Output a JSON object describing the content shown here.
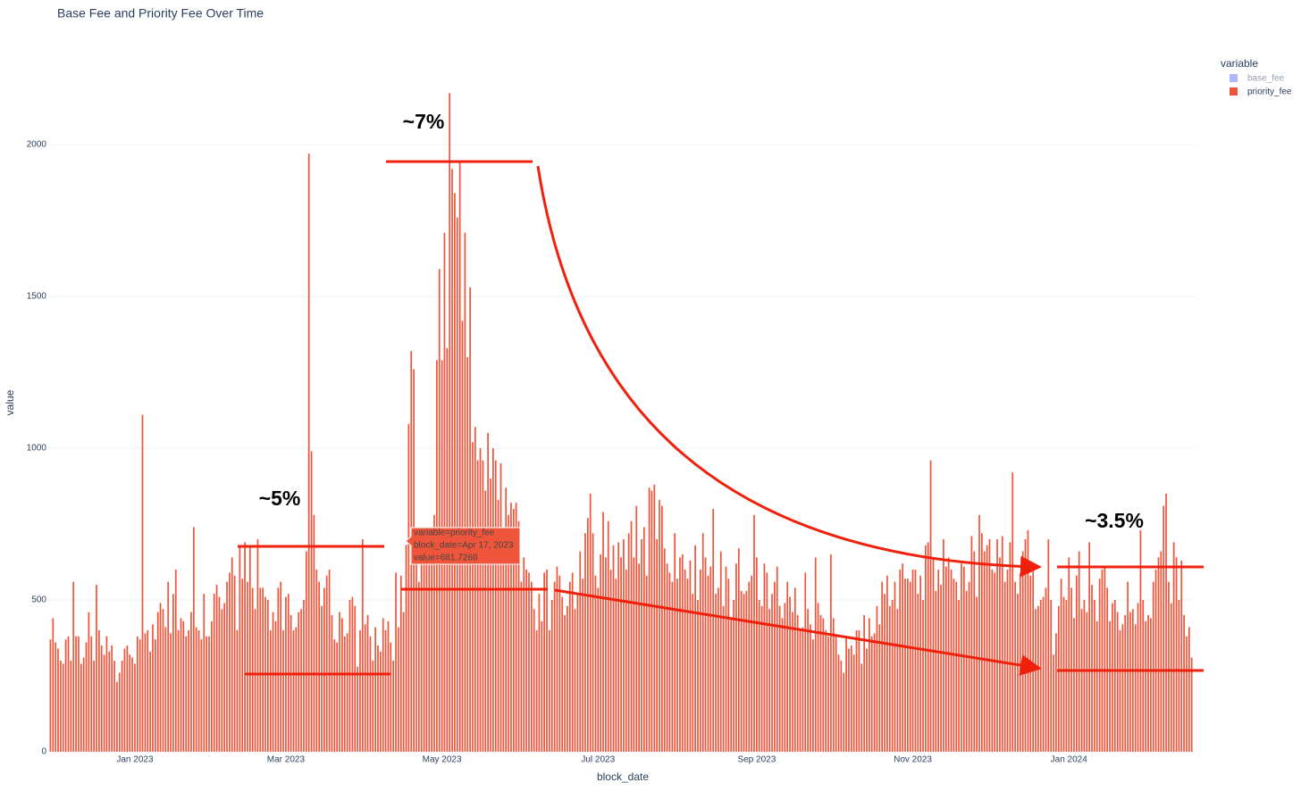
{
  "chart_data": {
    "type": "bar",
    "title": "Base Fee and Priority Fee Over Time",
    "x_label": "block_date",
    "y_label": "value",
    "legend_title": "variable",
    "legend_position": "top-right",
    "grid": true,
    "xlim": [
      "2022-11-28T12:00:00Z",
      "2024-02-19T12:00:00Z"
    ],
    "xticks": [
      {
        "value": "2023-01-01",
        "label": "Jan 2023"
      },
      {
        "value": "2023-03-01",
        "label": "Mar 2023"
      },
      {
        "value": "2023-05-01",
        "label": "May 2023"
      },
      {
        "value": "2023-07-01",
        "label": "Jul 2023"
      },
      {
        "value": "2023-09-01",
        "label": "Sep 2023"
      },
      {
        "value": "2023-11-01",
        "label": "Nov 2023"
      },
      {
        "value": "2024-01-01",
        "label": "Jan 2024"
      }
    ],
    "ylim": [
      0,
      2300
    ],
    "yticks": [
      0,
      500,
      1000,
      1500,
      2000
    ],
    "x": [
      "2022-11-29",
      "2022-11-30",
      "2022-12-01",
      "2022-12-02",
      "2022-12-03",
      "2022-12-04",
      "2022-12-05",
      "2022-12-06",
      "2022-12-07",
      "2022-12-08",
      "2022-12-09",
      "2022-12-10",
      "2022-12-11",
      "2022-12-12",
      "2022-12-13",
      "2022-12-14",
      "2022-12-15",
      "2022-12-16",
      "2022-12-17",
      "2022-12-18",
      "2022-12-19",
      "2022-12-20",
      "2022-12-21",
      "2022-12-22",
      "2022-12-23",
      "2022-12-24",
      "2022-12-25",
      "2022-12-26",
      "2022-12-27",
      "2022-12-28",
      "2022-12-29",
      "2022-12-30",
      "2022-12-31",
      "2023-01-01",
      "2023-01-02",
      "2023-01-03",
      "2023-01-04",
      "2023-01-05",
      "2023-01-06",
      "2023-01-07",
      "2023-01-08",
      "2023-01-09",
      "2023-01-10",
      "2023-01-11",
      "2023-01-12",
      "2023-01-13",
      "2023-01-14",
      "2023-01-15",
      "2023-01-16",
      "2023-01-17",
      "2023-01-18",
      "2023-01-19",
      "2023-01-20",
      "2023-01-21",
      "2023-01-22",
      "2023-01-23",
      "2023-01-24",
      "2023-01-25",
      "2023-01-26",
      "2023-01-27",
      "2023-01-28",
      "2023-01-29",
      "2023-01-30",
      "2023-01-31",
      "2023-02-01",
      "2023-02-02",
      "2023-02-03",
      "2023-02-04",
      "2023-02-05",
      "2023-02-06",
      "2023-02-07",
      "2023-02-08",
      "2023-02-09",
      "2023-02-10",
      "2023-02-11",
      "2023-02-12",
      "2023-02-13",
      "2023-02-14",
      "2023-02-15",
      "2023-02-16",
      "2023-02-17",
      "2023-02-18",
      "2023-02-19",
      "2023-02-20",
      "2023-02-21",
      "2023-02-22",
      "2023-02-23",
      "2023-02-24",
      "2023-02-25",
      "2023-02-26",
      "2023-02-27",
      "2023-02-28",
      "2023-03-01",
      "2023-03-02",
      "2023-03-03",
      "2023-03-04",
      "2023-03-05",
      "2023-03-06",
      "2023-03-07",
      "2023-03-08",
      "2023-03-09",
      "2023-03-10",
      "2023-03-11",
      "2023-03-12",
      "2023-03-13",
      "2023-03-14",
      "2023-03-15",
      "2023-03-16",
      "2023-03-17",
      "2023-03-18",
      "2023-03-19",
      "2023-03-20",
      "2023-03-21",
      "2023-03-22",
      "2023-03-23",
      "2023-03-24",
      "2023-03-25",
      "2023-03-26",
      "2023-03-27",
      "2023-03-28",
      "2023-03-29",
      "2023-03-30",
      "2023-03-31",
      "2023-04-01",
      "2023-04-02",
      "2023-04-03",
      "2023-04-04",
      "2023-04-05",
      "2023-04-06",
      "2023-04-07",
      "2023-04-08",
      "2023-04-09",
      "2023-04-10",
      "2023-04-11",
      "2023-04-12",
      "2023-04-13",
      "2023-04-14",
      "2023-04-15",
      "2023-04-16",
      "2023-04-17",
      "2023-04-18",
      "2023-04-19",
      "2023-04-20",
      "2023-04-21",
      "2023-04-22",
      "2023-04-23",
      "2023-04-24",
      "2023-04-25",
      "2023-04-26",
      "2023-04-27",
      "2023-04-28",
      "2023-04-29",
      "2023-04-30",
      "2023-05-01",
      "2023-05-02",
      "2023-05-03",
      "2023-05-04",
      "2023-05-05",
      "2023-05-06",
      "2023-05-07",
      "2023-05-08",
      "2023-05-09",
      "2023-05-10",
      "2023-05-11",
      "2023-05-12",
      "2023-05-13",
      "2023-05-14",
      "2023-05-15",
      "2023-05-16",
      "2023-05-17",
      "2023-05-18",
      "2023-05-19",
      "2023-05-20",
      "2023-05-21",
      "2023-05-22",
      "2023-05-23",
      "2023-05-24",
      "2023-05-25",
      "2023-05-26",
      "2023-05-27",
      "2023-05-28",
      "2023-05-29",
      "2023-05-30",
      "2023-05-31",
      "2023-06-01",
      "2023-06-02",
      "2023-06-03",
      "2023-06-04",
      "2023-06-05",
      "2023-06-06",
      "2023-06-07",
      "2023-06-08",
      "2023-06-09",
      "2023-06-10",
      "2023-06-11",
      "2023-06-12",
      "2023-06-13",
      "2023-06-14",
      "2023-06-15",
      "2023-06-16",
      "2023-06-17",
      "2023-06-18",
      "2023-06-19",
      "2023-06-20",
      "2023-06-21",
      "2023-06-22",
      "2023-06-23",
      "2023-06-24",
      "2023-06-25",
      "2023-06-26",
      "2023-06-27",
      "2023-06-28",
      "2023-06-29",
      "2023-06-30",
      "2023-07-01",
      "2023-07-02",
      "2023-07-03",
      "2023-07-04",
      "2023-07-05",
      "2023-07-06",
      "2023-07-07",
      "2023-07-08",
      "2023-07-09",
      "2023-07-10",
      "2023-07-11",
      "2023-07-12",
      "2023-07-13",
      "2023-07-14",
      "2023-07-15",
      "2023-07-16",
      "2023-07-17",
      "2023-07-18",
      "2023-07-19",
      "2023-07-20",
      "2023-07-21",
      "2023-07-22",
      "2023-07-23",
      "2023-07-24",
      "2023-07-25",
      "2023-07-26",
      "2023-07-27",
      "2023-07-28",
      "2023-07-29",
      "2023-07-30",
      "2023-07-31",
      "2023-08-01",
      "2023-08-02",
      "2023-08-03",
      "2023-08-04",
      "2023-08-05",
      "2023-08-06",
      "2023-08-07",
      "2023-08-08",
      "2023-08-09",
      "2023-08-10",
      "2023-08-11",
      "2023-08-12",
      "2023-08-13",
      "2023-08-14",
      "2023-08-15",
      "2023-08-16",
      "2023-08-17",
      "2023-08-18",
      "2023-08-19",
      "2023-08-20",
      "2023-08-21",
      "2023-08-22",
      "2023-08-23",
      "2023-08-24",
      "2023-08-25",
      "2023-08-26",
      "2023-08-27",
      "2023-08-28",
      "2023-08-29",
      "2023-08-30",
      "2023-08-31",
      "2023-09-01",
      "2023-09-02",
      "2023-09-03",
      "2023-09-04",
      "2023-09-05",
      "2023-09-06",
      "2023-09-07",
      "2023-09-08",
      "2023-09-09",
      "2023-09-10",
      "2023-09-11",
      "2023-09-12",
      "2023-09-13",
      "2023-09-14",
      "2023-09-15",
      "2023-09-16",
      "2023-09-17",
      "2023-09-18",
      "2023-09-19",
      "2023-09-20",
      "2023-09-21",
      "2023-09-22",
      "2023-09-23",
      "2023-09-24",
      "2023-09-25",
      "2023-09-26",
      "2023-09-27",
      "2023-09-28",
      "2023-09-29",
      "2023-09-30",
      "2023-10-01",
      "2023-10-02",
      "2023-10-03",
      "2023-10-04",
      "2023-10-05",
      "2023-10-06",
      "2023-10-07",
      "2023-10-08",
      "2023-10-09",
      "2023-10-10",
      "2023-10-11",
      "2023-10-12",
      "2023-10-13",
      "2023-10-14",
      "2023-10-15",
      "2023-10-16",
      "2023-10-17",
      "2023-10-18",
      "2023-10-19",
      "2023-10-20",
      "2023-10-21",
      "2023-10-22",
      "2023-10-23",
      "2023-10-24",
      "2023-10-25",
      "2023-10-26",
      "2023-10-27",
      "2023-10-28",
      "2023-10-29",
      "2023-10-30",
      "2023-10-31",
      "2023-11-01",
      "2023-11-02",
      "2023-11-03",
      "2023-11-04",
      "2023-11-05",
      "2023-11-06",
      "2023-11-07",
      "2023-11-08",
      "2023-11-09",
      "2023-11-10",
      "2023-11-11",
      "2023-11-12",
      "2023-11-13",
      "2023-11-14",
      "2023-11-15",
      "2023-11-16",
      "2023-11-17",
      "2023-11-18",
      "2023-11-19",
      "2023-11-20",
      "2023-11-21",
      "2023-11-22",
      "2023-11-23",
      "2023-11-24",
      "2023-11-25",
      "2023-11-26",
      "2023-11-27",
      "2023-11-28",
      "2023-11-29",
      "2023-11-30",
      "2023-12-01",
      "2023-12-02",
      "2023-12-03",
      "2023-12-04",
      "2023-12-05",
      "2023-12-06",
      "2023-12-07",
      "2023-12-08",
      "2023-12-09",
      "2023-12-10",
      "2023-12-11",
      "2023-12-12",
      "2023-12-13",
      "2023-12-14",
      "2023-12-15",
      "2023-12-16",
      "2023-12-17",
      "2023-12-18",
      "2023-12-19",
      "2023-12-20",
      "2023-12-21",
      "2023-12-22",
      "2023-12-23",
      "2023-12-24",
      "2023-12-25",
      "2023-12-26",
      "2023-12-27",
      "2023-12-28",
      "2023-12-29",
      "2023-12-30",
      "2023-12-31",
      "2024-01-01",
      "2024-01-02",
      "2024-01-03",
      "2024-01-04",
      "2024-01-05",
      "2024-01-06",
      "2024-01-07",
      "2024-01-08",
      "2024-01-09",
      "2024-01-10",
      "2024-01-11",
      "2024-01-12",
      "2024-01-13",
      "2024-01-14",
      "2024-01-15",
      "2024-01-16",
      "2024-01-17",
      "2024-01-18",
      "2024-01-19",
      "2024-01-20",
      "2024-01-21",
      "2024-01-22",
      "2024-01-23",
      "2024-01-24",
      "2024-01-25",
      "2024-01-26",
      "2024-01-27",
      "2024-01-28",
      "2024-01-29",
      "2024-01-30",
      "2024-01-31",
      "2024-02-01",
      "2024-02-02",
      "2024-02-03",
      "2024-02-04",
      "2024-02-05",
      "2024-02-06",
      "2024-02-07",
      "2024-02-08",
      "2024-02-09",
      "2024-02-10",
      "2024-02-11",
      "2024-02-12",
      "2024-02-13",
      "2024-02-14",
      "2024-02-15",
      "2024-02-16",
      "2024-02-17",
      "2024-02-18"
    ],
    "series": [
      {
        "name": "base_fee",
        "color": "#636efa",
        "visible": false
      },
      {
        "name": "priority_fee",
        "color": "#ef553b",
        "visible": true,
        "values": [
          370,
          440,
          360,
          340,
          300,
          290,
          370,
          380,
          300,
          560,
          380,
          380,
          290,
          310,
          360,
          460,
          380,
          300,
          550,
          400,
          350,
          320,
          380,
          330,
          350,
          300,
          230,
          260,
          300,
          340,
          350,
          320,
          310,
          290,
          380,
          370,
          1110,
          390,
          400,
          330,
          420,
          370,
          460,
          490,
          470,
          410,
          560,
          390,
          520,
          600,
          400,
          440,
          430,
          380,
          400,
          460,
          740,
          410,
          400,
          370,
          520,
          380,
          380,
          430,
          520,
          550,
          510,
          470,
          490,
          560,
          590,
          640,
          580,
          400,
          680,
          570,
          690,
          560,
          680,
          540,
          470,
          700,
          540,
          540,
          510,
          500,
          400,
          460,
          430,
          540,
          560,
          400,
          510,
          520,
          450,
          400,
          410,
          460,
          470,
          500,
          660,
          1970,
          990,
          780,
          600,
          560,
          480,
          540,
          580,
          600,
          450,
          370,
          360,
          460,
          440,
          380,
          390,
          500,
          510,
          480,
          280,
          400,
          700,
          420,
          450,
          380,
          300,
          410,
          350,
          330,
          440,
          400,
          430,
          360,
          300,
          590,
          410,
          580,
          460,
          681.7268,
          1080,
          1320,
          1260,
          690,
          560,
          650,
          720,
          640,
          680,
          700,
          780,
          1290,
          1590,
          1290,
          1710,
          1330,
          2170,
          1920,
          1840,
          1760,
          1940,
          1420,
          1710,
          1300,
          1530,
          1020,
          1070,
          960,
          1000,
          960,
          860,
          1050,
          900,
          1000,
          960,
          830,
          950,
          690,
          870,
          780,
          820,
          800,
          820,
          760,
          560,
          640,
          600,
          590,
          560,
          470,
          400,
          520,
          430,
          590,
          600,
          400,
          500,
          560,
          610,
          580,
          510,
          450,
          480,
          560,
          590,
          470,
          520,
          660,
          570,
          720,
          770,
          850,
          720,
          580,
          540,
          650,
          790,
          640,
          760,
          600,
          680,
          570,
          690,
          640,
          700,
          600,
          720,
          760,
          640,
          810,
          620,
          700,
          740,
          580,
          870,
          860,
          880,
          700,
          830,
          810,
          670,
          620,
          590,
          560,
          720,
          570,
          640,
          650,
          600,
          570,
          630,
          520,
          680,
          500,
          600,
          720,
          640,
          580,
          610,
          800,
          520,
          540,
          660,
          480,
          610,
          570,
          440,
          500,
          620,
          670,
          530,
          520,
          530,
          560,
          580,
          780,
          640,
          500,
          480,
          620,
          590,
          470,
          520,
          560,
          610,
          480,
          440,
          490,
          560,
          510,
          460,
          540,
          450,
          400,
          410,
          590,
          470,
          420,
          370,
          640,
          490,
          450,
          440,
          400,
          380,
          650,
          440,
          380,
          320,
          300,
          260,
          380,
          340,
          350,
          320,
          400,
          400,
          290,
          450,
          340,
          440,
          380,
          390,
          480,
          420,
          560,
          520,
          580,
          480,
          500,
          560,
          470,
          600,
          620,
          570,
          570,
          560,
          600,
          600,
          520,
          580,
          500,
          680,
          690,
          960,
          640,
          530,
          600,
          550,
          700,
          610,
          640,
          600,
          570,
          560,
          500,
          620,
          610,
          530,
          560,
          710,
          660,
          510,
          780,
          720,
          660,
          680,
          700,
          600,
          590,
          700,
          640,
          710,
          560,
          600,
          690,
          920,
          560,
          520,
          590,
          660,
          700,
          730,
          580,
          600,
          470,
          480,
          500,
          510,
          540,
          700,
          500,
          320,
          390,
          480,
          570,
          510,
          500,
          640,
          540,
          440,
          580,
          660,
          470,
          500,
          460,
          690,
          550,
          500,
          430,
          570,
          600,
          610,
          540,
          430,
          490,
          500,
          460,
          400,
          420,
          450,
          560,
          460,
          470,
          420,
          490,
          730,
          500,
          430,
          450,
          440,
          560,
          600,
          640,
          660,
          810,
          850,
          560,
          490,
          690,
          640,
          500,
          630,
          450,
          380,
          410,
          310
        ]
      }
    ],
    "annotations": [
      "~5%",
      "~7%",
      "~3.5%"
    ],
    "tooltip": {
      "lines": [
        "variable=priority_fee",
        "block_date=Apr 17, 2023",
        "value=681.7268"
      ]
    }
  }
}
